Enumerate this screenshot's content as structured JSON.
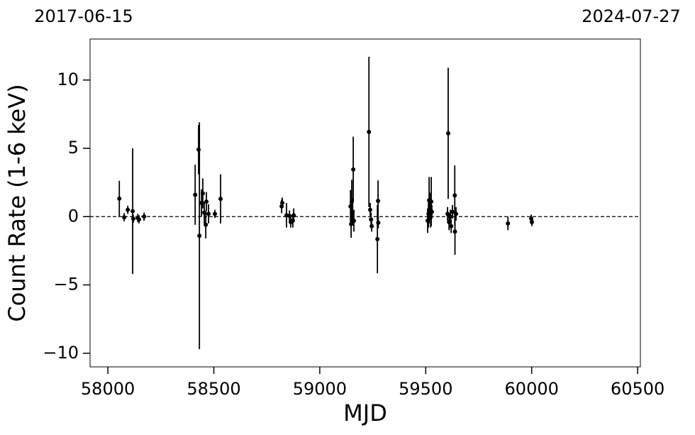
{
  "chart_data": {
    "type": "scatter",
    "annotations": [
      "2017-06-15",
      "2024-07-27"
    ],
    "xlabel": "MJD",
    "ylabel": "Count Rate (1-6 keV)",
    "xlim": [
      57916,
      60513
    ],
    "ylim": [
      -11,
      13
    ],
    "xticks": [
      58000,
      58500,
      59000,
      59500,
      60000,
      60500
    ],
    "yticks": [
      {
        "value": -10,
        "label": "−10"
      },
      {
        "value": -5,
        "label": "−5"
      },
      0,
      5,
      10
    ],
    "hline": 0,
    "color": "#000000",
    "x": [
      58054,
      58077,
      58094,
      58117,
      58120,
      58141,
      58147,
      58171,
      58412,
      58428,
      58432,
      58442,
      58448,
      58455,
      58462,
      58465,
      58475,
      58505,
      58532,
      58820,
      58823,
      58843,
      58857,
      58863,
      58873,
      58877,
      59145,
      59148,
      59151,
      59155,
      59158,
      59161,
      59232,
      59238,
      59242,
      59245,
      59272,
      59275,
      59276,
      59509,
      59513,
      59516,
      59520,
      59523,
      59526,
      59529,
      59603,
      59606,
      59610,
      59616,
      59620,
      59626,
      59637,
      59638,
      59643,
      59888,
      59998,
      60001
    ],
    "values": [
      1.32,
      -0.05,
      0.5,
      0.4,
      -0.15,
      -0.1,
      -0.2,
      0.0,
      1.6,
      4.9,
      -1.4,
      1.0,
      1.7,
      0.3,
      -0.6,
      1.1,
      0.2,
      0.2,
      1.3,
      0.75,
      1.0,
      0.1,
      0.05,
      -0.4,
      -0.3,
      0.1,
      0.75,
      -0.55,
      1.1,
      0.35,
      3.45,
      -0.3,
      6.2,
      0.5,
      -0.2,
      -0.7,
      -1.65,
      1.15,
      -0.45,
      -0.3,
      0.2,
      1.2,
      0.75,
      0.0,
      1.1,
      0.35,
      0.2,
      6.1,
      -0.4,
      0.0,
      -0.7,
      0.35,
      1.55,
      -1.1,
      0.2,
      -0.5,
      -0.15,
      -0.4
    ],
    "errors": [
      1.3,
      0.3,
      0.3,
      4.6,
      0.3,
      0.3,
      0.3,
      0.3,
      2.2,
      1.8,
      8.3,
      1.0,
      1.1,
      0.8,
      1.0,
      0.7,
      0.7,
      0.3,
      1.8,
      0.5,
      0.4,
      0.9,
      0.4,
      0.4,
      0.5,
      0.5,
      1.2,
      1.0,
      1.6,
      1.0,
      2.4,
      0.8,
      5.5,
      0.5,
      0.5,
      0.4,
      2.5,
      1.5,
      0.4,
      0.9,
      1.0,
      1.7,
      1.0,
      0.8,
      1.8,
      0.5,
      0.5,
      4.8,
      0.6,
      0.5,
      0.5,
      0.5,
      2.2,
      1.7,
      0.5,
      0.5,
      0.3,
      0.3
    ]
  }
}
